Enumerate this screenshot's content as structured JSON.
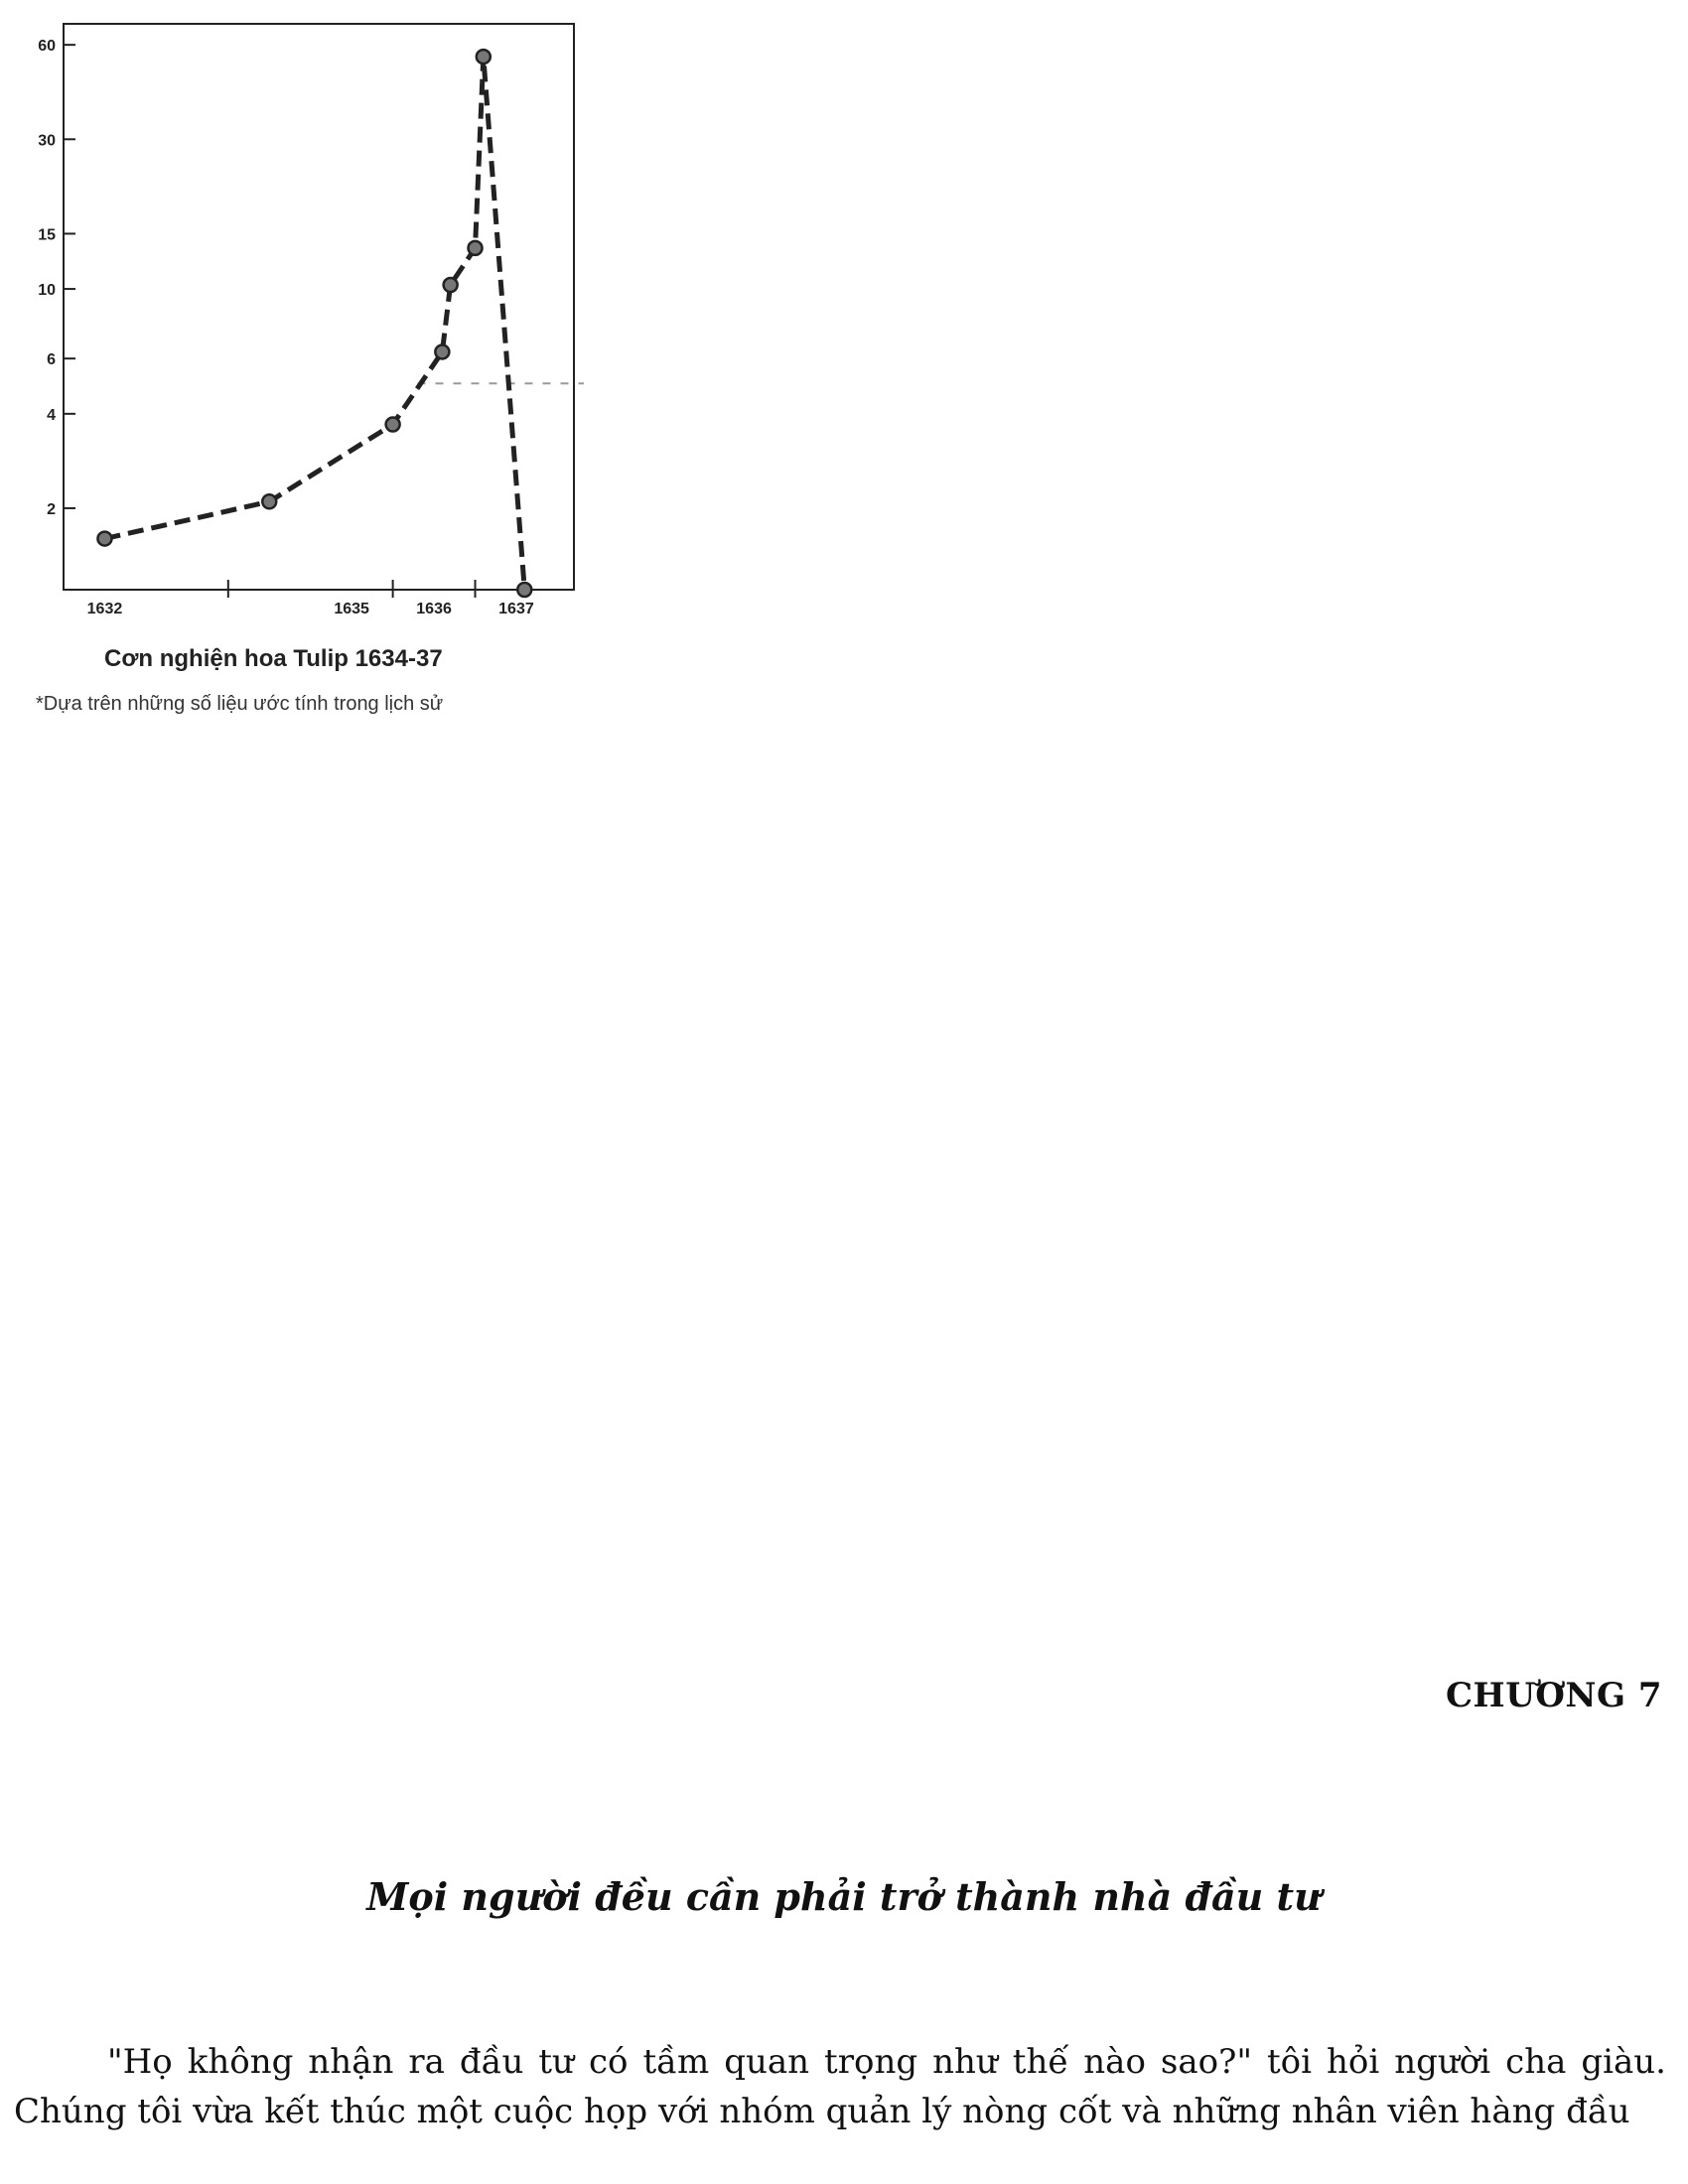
{
  "figure": {
    "caption": "Cơn nghiện hoa Tulip 1634-37",
    "note": "*Dựa trên những số liệu ước tính trong lịch sử"
  },
  "chart_data": {
    "type": "line",
    "title": "",
    "xlabel": "",
    "ylabel": "",
    "y_scale": "log",
    "y_ticks": [
      2,
      4,
      6,
      10,
      15,
      30,
      60
    ],
    "y_tick_labels": [
      "2",
      "4",
      "6",
      "10",
      "15",
      "30",
      "60"
    ],
    "x_tick_labels": [
      "1632",
      "1635",
      "1636",
      "1637"
    ],
    "x_ticks": [
      1632,
      1635,
      1636,
      1637
    ],
    "xlim": [
      1631.5,
      1637.7
    ],
    "ylim": [
      1.1,
      70
    ],
    "line_style": "dashed",
    "marker": "circle",
    "reference_line": {
      "y": 5,
      "style": "dashed",
      "color": "#999999"
    },
    "series": [
      {
        "x": [
          1632.0,
          1634.0,
          1635.5,
          1636.1,
          1636.2,
          1636.5,
          1636.6,
          1637.1
        ],
        "values": [
          1.6,
          2.1,
          3.7,
          6.3,
          10.3,
          13.5,
          55.0,
          1.0
        ]
      }
    ],
    "grid": false,
    "legend": "none"
  },
  "chapter": {
    "number": "CHƯƠNG 7",
    "title": "Mọi người đều cần phải trở thành nhà đầu tư"
  },
  "body": {
    "paragraph": "\"Họ không nhận ra đầu tư có tầm quan trọng như thế nào sao?\" tôi hỏi người cha giàu. Chúng tôi vừa kết thúc một cuộc họp với nhóm quản lý nòng cốt và những nhân viên hàng đầu"
  }
}
